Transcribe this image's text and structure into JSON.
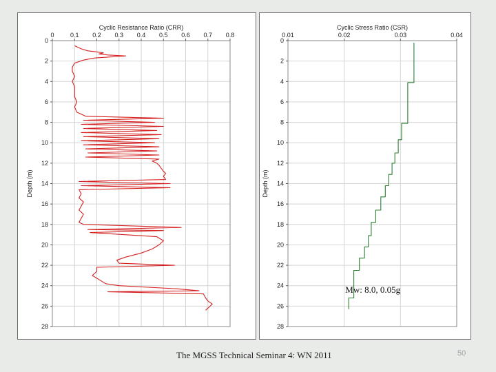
{
  "slide": {
    "footer": "The MGSS Technical Seminar 4: WN 2011",
    "page_number": "50",
    "background": "#e9ebe9"
  },
  "chart_data": [
    {
      "type": "line",
      "title": "Cyclic Resistance Ratio (CRR)",
      "ylabel": "Depth (m)",
      "xlim": [
        0,
        0.8
      ],
      "ylim": [
        0,
        28
      ],
      "y_inverted": true,
      "x_axis_position": "top",
      "x_ticks": [
        0,
        0.1,
        0.2,
        0.3,
        0.4,
        0.5,
        0.6,
        0.7,
        0.8
      ],
      "x_tick_labels": [
        "0",
        "0.1",
        "0.2",
        "0.3",
        "0.4",
        "0.5",
        "0.6",
        "0.7",
        "0.8"
      ],
      "y_ticks": [
        0,
        2,
        4,
        6,
        8,
        10,
        12,
        14,
        16,
        18,
        20,
        22,
        24,
        26,
        28
      ],
      "y_tick_labels": [
        "0",
        "2",
        "4",
        "6",
        "8",
        "10",
        "12",
        "14",
        "16",
        "18",
        "20",
        "22",
        "24",
        "26",
        "28"
      ],
      "grid": true,
      "color": "#d42020",
      "series": [
        {
          "points": [
            [
              0.1,
              0.5
            ],
            [
              0.11,
              0.6
            ],
            [
              0.13,
              0.8
            ],
            [
              0.16,
              1.0
            ],
            [
              0.2,
              1.1
            ],
            [
              0.23,
              1.2
            ],
            [
              0.21,
              1.3
            ],
            [
              0.25,
              1.4
            ],
            [
              0.33,
              1.5
            ],
            [
              0.26,
              1.6
            ],
            [
              0.19,
              1.7
            ],
            [
              0.14,
              1.9
            ],
            [
              0.1,
              2.2
            ],
            [
              0.09,
              2.6
            ],
            [
              0.09,
              3.0
            ],
            [
              0.1,
              3.5
            ],
            [
              0.09,
              4.0
            ],
            [
              0.1,
              4.5
            ],
            [
              0.1,
              5.0
            ],
            [
              0.1,
              5.5
            ],
            [
              0.11,
              6.0
            ],
            [
              0.1,
              6.5
            ],
            [
              0.11,
              7.0
            ],
            [
              0.15,
              7.4
            ],
            [
              0.5,
              7.6
            ],
            [
              0.14,
              7.8
            ],
            [
              0.46,
              8.0
            ],
            [
              0.13,
              8.2
            ],
            [
              0.5,
              8.4
            ],
            [
              0.14,
              8.6
            ],
            [
              0.47,
              8.8
            ],
            [
              0.13,
              9.0
            ],
            [
              0.49,
              9.2
            ],
            [
              0.14,
              9.4
            ],
            [
              0.48,
              9.6
            ],
            [
              0.13,
              9.8
            ],
            [
              0.46,
              10.0
            ],
            [
              0.14,
              10.2
            ],
            [
              0.48,
              10.4
            ],
            [
              0.15,
              10.6
            ],
            [
              0.47,
              10.8
            ],
            [
              0.16,
              11.0
            ],
            [
              0.48,
              11.2
            ],
            [
              0.15,
              11.4
            ],
            [
              0.48,
              11.6
            ],
            [
              0.45,
              11.8
            ],
            [
              0.47,
              12.0
            ],
            [
              0.48,
              12.2
            ],
            [
              0.49,
              12.5
            ],
            [
              0.5,
              12.8
            ],
            [
              0.51,
              13.0
            ],
            [
              0.5,
              13.3
            ],
            [
              0.51,
              13.6
            ],
            [
              0.12,
              13.8
            ],
            [
              0.53,
              14.0
            ],
            [
              0.13,
              14.2
            ],
            [
              0.53,
              14.4
            ],
            [
              0.12,
              14.6
            ],
            [
              0.13,
              15.0
            ],
            [
              0.12,
              15.4
            ],
            [
              0.14,
              15.8
            ],
            [
              0.13,
              16.2
            ],
            [
              0.12,
              16.6
            ],
            [
              0.14,
              17.0
            ],
            [
              0.13,
              17.4
            ],
            [
              0.12,
              17.8
            ],
            [
              0.14,
              18.0
            ],
            [
              0.58,
              18.3
            ],
            [
              0.16,
              18.5
            ],
            [
              0.5,
              18.6
            ],
            [
              0.17,
              18.8
            ],
            [
              0.47,
              19.2
            ],
            [
              0.5,
              19.6
            ],
            [
              0.48,
              20.0
            ],
            [
              0.45,
              20.4
            ],
            [
              0.4,
              20.8
            ],
            [
              0.33,
              21.2
            ],
            [
              0.29,
              21.5
            ],
            [
              0.3,
              21.8
            ],
            [
              0.55,
              22.0
            ],
            [
              0.2,
              22.2
            ],
            [
              0.2,
              22.6
            ],
            [
              0.18,
              23.0
            ],
            [
              0.21,
              23.4
            ],
            [
              0.24,
              23.8
            ],
            [
              0.3,
              24.0
            ],
            [
              0.56,
              24.3
            ],
            [
              0.66,
              24.5
            ],
            [
              0.25,
              24.6
            ],
            [
              0.68,
              24.8
            ],
            [
              0.69,
              25.2
            ],
            [
              0.7,
              25.5
            ],
            [
              0.72,
              25.8
            ],
            [
              0.7,
              26.2
            ],
            [
              0.69,
              26.4
            ]
          ]
        }
      ]
    },
    {
      "type": "line",
      "title": "Cyclic Stress Ratio (CSR)",
      "ylabel": "Depth (m)",
      "xlim": [
        0.01,
        0.04
      ],
      "ylim": [
        0,
        28
      ],
      "y_inverted": true,
      "x_axis_position": "top",
      "x_ticks": [
        0.01,
        0.02,
        0.03,
        0.04
      ],
      "x_tick_labels": [
        "0.01",
        "0.02",
        "0.03",
        "0.04"
      ],
      "y_ticks": [
        0,
        2,
        4,
        6,
        8,
        10,
        12,
        14,
        16,
        18,
        20,
        22,
        24,
        26,
        28
      ],
      "y_tick_labels": [
        "0",
        "2",
        "4",
        "6",
        "8",
        "10",
        "12",
        "14",
        "16",
        "18",
        "20",
        "22",
        "24",
        "26",
        "28"
      ],
      "grid": true,
      "color": "#2e7d32",
      "annotation": "Mw: 8.0, 0.05g",
      "series": [
        {
          "points": [
            [
              0.0324,
              0.2
            ],
            [
              0.0324,
              4.1
            ],
            [
              0.0313,
              4.1
            ],
            [
              0.0313,
              8.1
            ],
            [
              0.0302,
              8.1
            ],
            [
              0.0302,
              9.7
            ],
            [
              0.0296,
              9.7
            ],
            [
              0.0296,
              11.0
            ],
            [
              0.029,
              11.0
            ],
            [
              0.029,
              12.0
            ],
            [
              0.0285,
              12.0
            ],
            [
              0.0285,
              13.1
            ],
            [
              0.0279,
              13.1
            ],
            [
              0.0279,
              14.2
            ],
            [
              0.0273,
              14.2
            ],
            [
              0.0273,
              15.3
            ],
            [
              0.0265,
              15.3
            ],
            [
              0.0265,
              16.6
            ],
            [
              0.0256,
              16.6
            ],
            [
              0.0256,
              17.8
            ],
            [
              0.0248,
              17.8
            ],
            [
              0.0248,
              19.1
            ],
            [
              0.0243,
              19.1
            ],
            [
              0.0243,
              20.2
            ],
            [
              0.0236,
              20.2
            ],
            [
              0.0236,
              21.3
            ],
            [
              0.0227,
              21.3
            ],
            [
              0.0227,
              22.5
            ],
            [
              0.0217,
              22.5
            ],
            [
              0.0217,
              25.2
            ],
            [
              0.0208,
              25.2
            ],
            [
              0.0208,
              26.3
            ]
          ]
        }
      ]
    }
  ]
}
